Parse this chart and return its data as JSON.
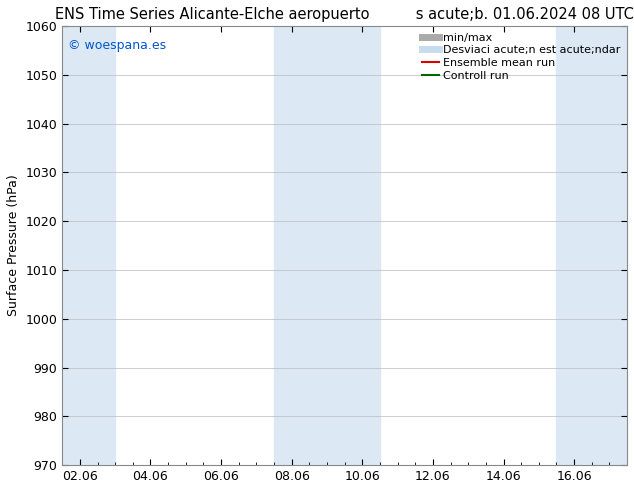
{
  "title_left": "ENS Time Series Alicante-Elche aeropuerto",
  "title_right": "s acute;b. 01.06.2024 08 UTC",
  "ylabel": "Surface Pressure (hPa)",
  "ylim": [
    970,
    1060
  ],
  "yticks": [
    970,
    980,
    990,
    1000,
    1010,
    1020,
    1030,
    1040,
    1050,
    1060
  ],
  "xtick_labels": [
    "02.06",
    "04.06",
    "06.06",
    "08.06",
    "10.06",
    "12.06",
    "14.06",
    "16.06"
  ],
  "xtick_positions": [
    0,
    2,
    4,
    6,
    8,
    10,
    12,
    14
  ],
  "xlim": [
    -0.5,
    15.5
  ],
  "background_color": "#ffffff",
  "plot_bg_color": "#ffffff",
  "shaded_columns": [
    {
      "x_start": -0.5,
      "x_end": 1.0,
      "color": "#dce9f5"
    },
    {
      "x_start": 5.5,
      "x_end": 8.5,
      "color": "#dce9f5"
    },
    {
      "x_start": 13.5,
      "x_end": 15.5,
      "color": "#dce9f5"
    }
  ],
  "watermark_text": "© woespana.es",
  "watermark_color": "#0055cc",
  "legend_labels": [
    "min/max",
    "Desviaci acute;n est acute;ndar",
    "Ensemble mean run",
    "Controll run"
  ],
  "legend_colors": [
    "#aaaaaa",
    "#c8dcf0",
    "#dd0000",
    "#006600"
  ],
  "legend_linewidths": [
    5,
    5,
    1.5,
    1.5
  ],
  "title_fontsize": 10.5,
  "tick_fontsize": 9,
  "ylabel_fontsize": 9,
  "legend_fontsize": 8,
  "grid_color": "#bbbbbb",
  "grid_linewidth": 0.5
}
